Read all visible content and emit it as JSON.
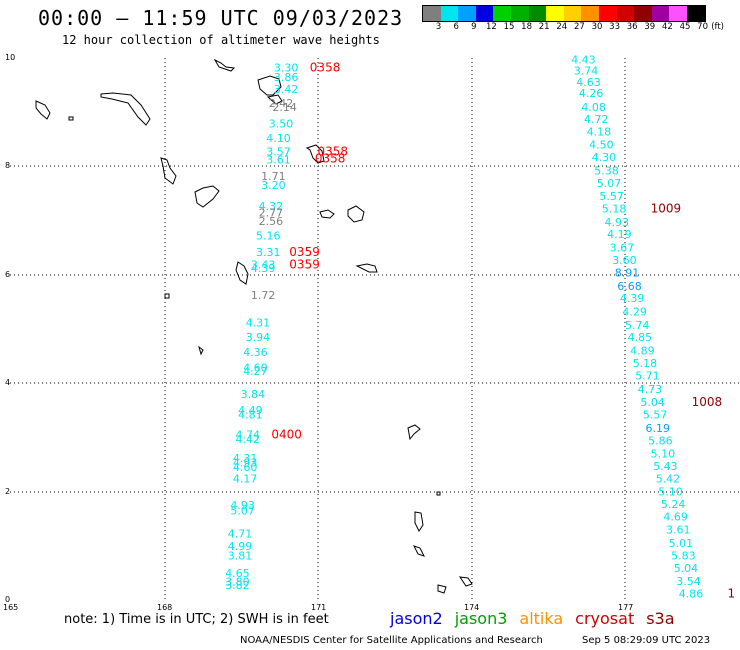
{
  "header": {
    "title": "00:00 – 11:59 UTC 09/03/2023",
    "subtitle": "12 hour collection of altimeter wave heights"
  },
  "legend": {
    "unit": "(ft)",
    "stops": [
      {
        "label": "3",
        "color": "#7f7f7f"
      },
      {
        "label": "6",
        "color": "#00e5ee"
      },
      {
        "label": "9",
        "color": "#00a0ff"
      },
      {
        "label": "12",
        "color": "#0000e0"
      },
      {
        "label": "15",
        "color": "#00d000"
      },
      {
        "label": "18",
        "color": "#00b000"
      },
      {
        "label": "21",
        "color": "#008c00"
      },
      {
        "label": "24",
        "color": "#ffff00"
      },
      {
        "label": "27",
        "color": "#ffd000"
      },
      {
        "label": "30",
        "color": "#ff9000"
      },
      {
        "label": "33",
        "color": "#ff0000"
      },
      {
        "label": "36",
        "color": "#d00000"
      },
      {
        "label": "39",
        "color": "#900000"
      },
      {
        "label": "42",
        "color": "#a000a0"
      },
      {
        "label": "45",
        "color": "#ff50ff"
      },
      {
        "label": "70",
        "color": "#000000"
      }
    ]
  },
  "axes": {
    "x_ticks": [
      "165",
      "168",
      "171",
      "174",
      "177"
    ],
    "y_ticks": [
      "0",
      "2",
      "4",
      "6",
      "8",
      "10"
    ]
  },
  "observations": {
    "west_track": [
      {
        "v": "3.30",
        "lon": 170.15,
        "lat": 9.75,
        "c": "#00e5ee"
      },
      {
        "v": "3.86",
        "lon": 170.15,
        "lat": 9.58,
        "c": "#00e5ee"
      },
      {
        "v": "3.42",
        "lon": 170.15,
        "lat": 9.35,
        "c": "#00e5ee"
      },
      {
        "v": "2.42",
        "lon": 170.05,
        "lat": 9.1,
        "c": "#7f7f7f"
      },
      {
        "v": "2.14",
        "lon": 170.12,
        "lat": 9.02,
        "c": "#7f7f7f"
      },
      {
        "v": "3.50",
        "lon": 170.05,
        "lat": 8.72,
        "c": "#00e5ee"
      },
      {
        "v": "4.10",
        "lon": 170.0,
        "lat": 8.45,
        "c": "#00e5ee"
      },
      {
        "v": "3.57",
        "lon": 170.0,
        "lat": 8.2,
        "c": "#00e5ee"
      },
      {
        "v": "3.61",
        "lon": 170.0,
        "lat": 8.05,
        "c": "#00e5ee"
      },
      {
        "v": "1.71",
        "lon": 169.9,
        "lat": 7.75,
        "c": "#7f7f7f"
      },
      {
        "v": "3.20",
        "lon": 169.9,
        "lat": 7.58,
        "c": "#00e5ee"
      },
      {
        "v": "4.32",
        "lon": 169.85,
        "lat": 7.2,
        "c": "#00e5ee"
      },
      {
        "v": "2.77",
        "lon": 169.85,
        "lat": 7.08,
        "c": "#7f7f7f"
      },
      {
        "v": "2.56",
        "lon": 169.85,
        "lat": 6.92,
        "c": "#7f7f7f"
      },
      {
        "v": "5.16",
        "lon": 169.8,
        "lat": 6.65,
        "c": "#00e5ee"
      },
      {
        "v": "3.31",
        "lon": 169.8,
        "lat": 6.35,
        "c": "#00e5ee"
      },
      {
        "v": "3.43",
        "lon": 169.7,
        "lat": 6.12,
        "c": "#00e5ee"
      },
      {
        "v": "4.39",
        "lon": 169.7,
        "lat": 6.05,
        "c": "#00e5ee"
      },
      {
        "v": "1.72",
        "lon": 169.7,
        "lat": 5.55,
        "c": "#7f7f7f"
      },
      {
        "v": "4.31",
        "lon": 169.6,
        "lat": 5.05,
        "c": "#00e5ee"
      },
      {
        "v": "3.94",
        "lon": 169.6,
        "lat": 4.78,
        "c": "#00e5ee"
      },
      {
        "v": "4.36",
        "lon": 169.55,
        "lat": 4.5,
        "c": "#00e5ee"
      },
      {
        "v": "4.60",
        "lon": 169.55,
        "lat": 4.22,
        "c": "#00e5ee"
      },
      {
        "v": "4.27",
        "lon": 169.55,
        "lat": 4.15,
        "c": "#00e5ee"
      },
      {
        "v": "3.84",
        "lon": 169.5,
        "lat": 3.73,
        "c": "#00e5ee"
      },
      {
        "v": "4.49",
        "lon": 169.45,
        "lat": 3.43,
        "c": "#00e5ee"
      },
      {
        "v": "4.81",
        "lon": 169.45,
        "lat": 3.35,
        "c": "#00e5ee"
      },
      {
        "v": "4.74",
        "lon": 169.4,
        "lat": 2.98,
        "c": "#00e5ee"
      },
      {
        "v": "4.42",
        "lon": 169.4,
        "lat": 2.9,
        "c": "#00e5ee"
      },
      {
        "v": "4.31",
        "lon": 169.35,
        "lat": 2.55,
        "c": "#00e5ee"
      },
      {
        "v": "4.93",
        "lon": 169.35,
        "lat": 2.46,
        "c": "#00e5ee"
      },
      {
        "v": "4.60",
        "lon": 169.35,
        "lat": 2.38,
        "c": "#00e5ee"
      },
      {
        "v": "4.17",
        "lon": 169.35,
        "lat": 2.17,
        "c": "#00e5ee"
      },
      {
        "v": "4.93",
        "lon": 169.3,
        "lat": 1.68,
        "c": "#00e5ee"
      },
      {
        "v": "5.07",
        "lon": 169.3,
        "lat": 1.58,
        "c": "#00e5ee"
      },
      {
        "v": "4.71",
        "lon": 169.25,
        "lat": 1.15,
        "c": "#00e5ee"
      },
      {
        "v": "4.99",
        "lon": 169.25,
        "lat": 0.92,
        "c": "#00e5ee"
      },
      {
        "v": "3.81",
        "lon": 169.25,
        "lat": 0.75,
        "c": "#00e5ee"
      },
      {
        "v": "4.65",
        "lon": 169.2,
        "lat": 0.42,
        "c": "#00e5ee"
      },
      {
        "v": "3.80",
        "lon": 169.2,
        "lat": 0.27,
        "c": "#00e5ee"
      },
      {
        "v": "3.82",
        "lon": 169.2,
        "lat": 0.2,
        "c": "#00e5ee"
      }
    ],
    "east_track": [
      {
        "v": "4.43",
        "lon": 175.95,
        "lat": 9.9,
        "c": "#00e5ee"
      },
      {
        "v": "3.74",
        "lon": 176.0,
        "lat": 9.7,
        "c": "#00e5ee"
      },
      {
        "v": "4.63",
        "lon": 176.05,
        "lat": 9.48,
        "c": "#00e5ee"
      },
      {
        "v": "4.26",
        "lon": 176.1,
        "lat": 9.28,
        "c": "#00e5ee"
      },
      {
        "v": "4.08",
        "lon": 176.15,
        "lat": 9.02,
        "c": "#00e5ee"
      },
      {
        "v": "4.72",
        "lon": 176.2,
        "lat": 8.8,
        "c": "#00e5ee"
      },
      {
        "v": "4.18",
        "lon": 176.25,
        "lat": 8.57,
        "c": "#00e5ee"
      },
      {
        "v": "4.50",
        "lon": 176.3,
        "lat": 8.33,
        "c": "#00e5ee"
      },
      {
        "v": "4.30",
        "lon": 176.35,
        "lat": 8.1,
        "c": "#00e5ee"
      },
      {
        "v": "5.38",
        "lon": 176.4,
        "lat": 7.85,
        "c": "#00e5ee"
      },
      {
        "v": "5.07",
        "lon": 176.45,
        "lat": 7.62,
        "c": "#00e5ee"
      },
      {
        "v": "5.57",
        "lon": 176.5,
        "lat": 7.38,
        "c": "#00e5ee"
      },
      {
        "v": "5.18",
        "lon": 176.55,
        "lat": 7.15,
        "c": "#00e5ee"
      },
      {
        "v": "4.93",
        "lon": 176.6,
        "lat": 6.9,
        "c": "#00e5ee"
      },
      {
        "v": "4.19",
        "lon": 176.65,
        "lat": 6.68,
        "c": "#00e5ee"
      },
      {
        "v": "3.67",
        "lon": 176.7,
        "lat": 6.43,
        "c": "#00e5ee"
      },
      {
        "v": "3.60",
        "lon": 176.75,
        "lat": 6.2,
        "c": "#00e5ee"
      },
      {
        "v": "8.91",
        "lon": 176.8,
        "lat": 5.97,
        "c": "#00a0ff"
      },
      {
        "v": "6.68",
        "lon": 176.85,
        "lat": 5.72,
        "c": "#00a0ff"
      },
      {
        "v": "4.39",
        "lon": 176.9,
        "lat": 5.5,
        "c": "#00e5ee"
      },
      {
        "v": "4.29",
        "lon": 176.95,
        "lat": 5.25,
        "c": "#00e5ee"
      },
      {
        "v": "5.74",
        "lon": 177.0,
        "lat": 5.0,
        "c": "#00e5ee"
      },
      {
        "v": "4.85",
        "lon": 177.05,
        "lat": 4.78,
        "c": "#00e5ee"
      },
      {
        "v": "4.89",
        "lon": 177.1,
        "lat": 4.53,
        "c": "#00e5ee"
      },
      {
        "v": "5.18",
        "lon": 177.15,
        "lat": 4.3,
        "c": "#00e5ee"
      },
      {
        "v": "5.71",
        "lon": 177.2,
        "lat": 4.07,
        "c": "#00e5ee"
      },
      {
        "v": "4.73",
        "lon": 177.25,
        "lat": 3.82,
        "c": "#00e5ee"
      },
      {
        "v": "5.04",
        "lon": 177.3,
        "lat": 3.58,
        "c": "#00e5ee"
      },
      {
        "v": "5.57",
        "lon": 177.35,
        "lat": 3.35,
        "c": "#00e5ee"
      },
      {
        "v": "6.19",
        "lon": 177.4,
        "lat": 3.1,
        "c": "#00a0ff"
      },
      {
        "v": "5.86",
        "lon": 177.45,
        "lat": 2.87,
        "c": "#00e5ee"
      },
      {
        "v": "5.10",
        "lon": 177.5,
        "lat": 2.63,
        "c": "#00e5ee"
      },
      {
        "v": "5.43",
        "lon": 177.55,
        "lat": 2.4,
        "c": "#00e5ee"
      },
      {
        "v": "5.42",
        "lon": 177.6,
        "lat": 2.17,
        "c": "#00e5ee"
      },
      {
        "v": "5.10",
        "lon": 177.65,
        "lat": 1.93,
        "c": "#00e5ee"
      },
      {
        "v": "5.24",
        "lon": 177.7,
        "lat": 1.7,
        "c": "#00e5ee"
      },
      {
        "v": "4.69",
        "lon": 177.75,
        "lat": 1.47,
        "c": "#00e5ee"
      },
      {
        "v": "3.61",
        "lon": 177.8,
        "lat": 1.23,
        "c": "#00e5ee"
      },
      {
        "v": "5.01",
        "lon": 177.85,
        "lat": 0.98,
        "c": "#00e5ee"
      },
      {
        "v": "5.83",
        "lon": 177.9,
        "lat": 0.75,
        "c": "#00e5ee"
      },
      {
        "v": "5.04",
        "lon": 177.95,
        "lat": 0.52,
        "c": "#00e5ee"
      },
      {
        "v": "3.54",
        "lon": 178.0,
        "lat": 0.28,
        "c": "#00e5ee"
      },
      {
        "v": "4.86",
        "lon": 178.05,
        "lat": 0.05,
        "c": "#00e5ee"
      }
    ],
    "times": [
      {
        "v": "0358",
        "lon": 170.85,
        "lat": 9.75,
        "c": "#ff0000"
      },
      {
        "v": "0358",
        "lon": 171.0,
        "lat": 8.2,
        "c": "#ff0000"
      },
      {
        "v": "0358",
        "lon": 170.95,
        "lat": 8.07,
        "c": "#ff0000"
      },
      {
        "v": "0359",
        "lon": 170.45,
        "lat": 6.35,
        "c": "#ff0000"
      },
      {
        "v": "0359",
        "lon": 170.45,
        "lat": 6.12,
        "c": "#ff0000"
      },
      {
        "v": "0400",
        "lon": 170.1,
        "lat": 2.98,
        "c": "#ff0000"
      },
      {
        "v": "1009",
        "lon": 177.5,
        "lat": 7.15,
        "c": "#900000"
      },
      {
        "v": "1008",
        "lon": 178.3,
        "lat": 3.58,
        "c": "#900000"
      },
      {
        "v": "1",
        "lon": 179.0,
        "lat": 0.05,
        "c": "#900000"
      }
    ]
  },
  "footer": {
    "note": "note: 1) Time is in UTC; 2) SWH is in feet",
    "satellites": [
      {
        "name": "jason2",
        "color": "#0000e0"
      },
      {
        "name": "jason3",
        "color": "#00a000"
      },
      {
        "name": "altika",
        "color": "#ff9000"
      },
      {
        "name": "cryosat",
        "color": "#d00000"
      },
      {
        "name": "s3a",
        "color": "#900000"
      }
    ],
    "credit": "NOAA/NESDIS Center for Satellite Applications and Research",
    "timestamp": "Sep  5 08:29:09 UTC 2023"
  }
}
